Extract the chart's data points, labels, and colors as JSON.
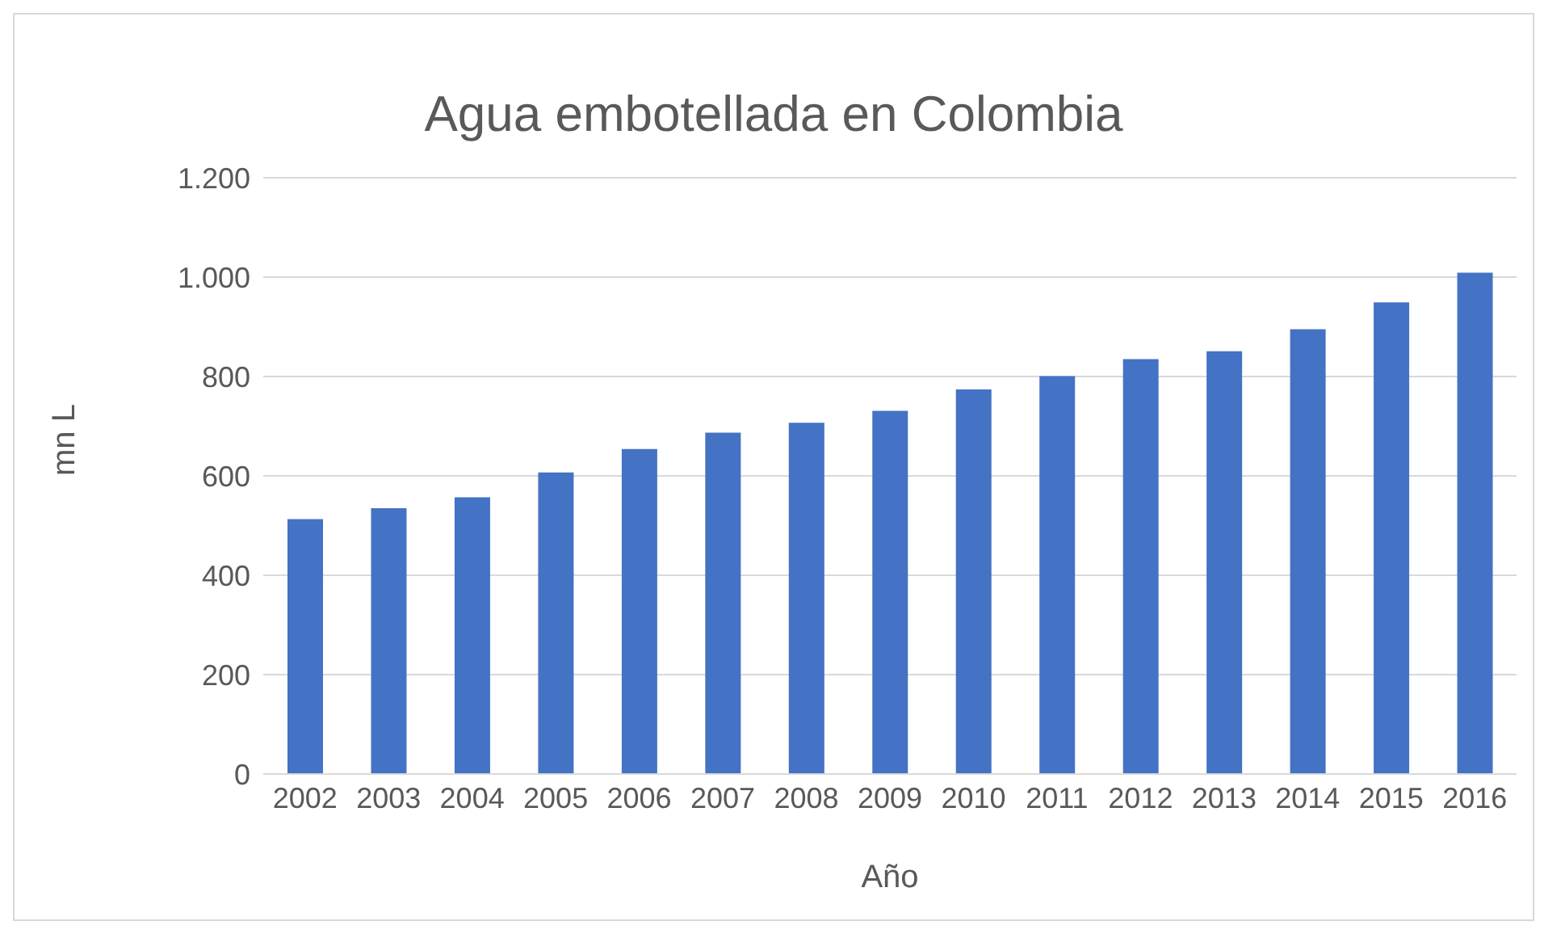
{
  "chart_data": {
    "type": "bar",
    "title": "Agua embotellada en Colombia",
    "xlabel": "Año",
    "ylabel": "mn L",
    "categories": [
      "2002",
      "2003",
      "2004",
      "2005",
      "2006",
      "2007",
      "2008",
      "2009",
      "2010",
      "2011",
      "2012",
      "2013",
      "2014",
      "2015",
      "2016"
    ],
    "values": [
      513,
      535,
      557,
      607,
      654,
      687,
      707,
      731,
      774,
      801,
      835,
      851,
      895,
      949,
      1009
    ],
    "color": "#4472c4",
    "ylim": [
      0,
      1200
    ],
    "yticks": [
      0,
      200,
      400,
      600,
      800,
      {
        "value": 1000,
        "label": "1.000"
      },
      {
        "value": 1200,
        "label": "1.200"
      }
    ],
    "grid": "y",
    "legend": false
  }
}
